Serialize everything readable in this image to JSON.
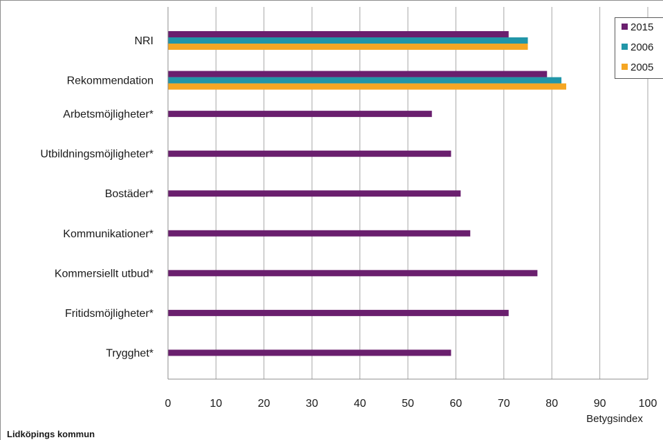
{
  "footer": {
    "title": "Lidköpings kommun"
  },
  "chart_data": {
    "type": "bar",
    "orientation": "horizontal",
    "categories": [
      "NRI",
      "Rekommendation",
      "Arbetsmöjligheter*",
      "Utbildningsmöjligheter*",
      "Bostäder*",
      "Kommunikationer*",
      "Kommersiellt utbud*",
      "Fritidsmöjligheter*",
      "Trygghet*"
    ],
    "series": [
      {
        "name": "2015",
        "color": "#6a1f6e",
        "values": [
          71,
          79,
          55,
          59,
          61,
          63,
          77,
          71,
          59
        ]
      },
      {
        "name": "2006",
        "color": "#2196a8",
        "values": [
          75,
          82,
          null,
          null,
          null,
          null,
          null,
          null,
          null
        ]
      },
      {
        "name": "2005",
        "color": "#f5a623",
        "values": [
          75,
          83,
          null,
          null,
          null,
          null,
          null,
          null,
          null
        ]
      }
    ],
    "xlabel": "Betygsindex",
    "xlim": [
      0,
      100
    ],
    "xticks": [
      "0",
      "10",
      "20",
      "30",
      "40",
      "50",
      "60",
      "70",
      "80",
      "90",
      "100"
    ],
    "grid": true,
    "legend_position": "top-right"
  }
}
